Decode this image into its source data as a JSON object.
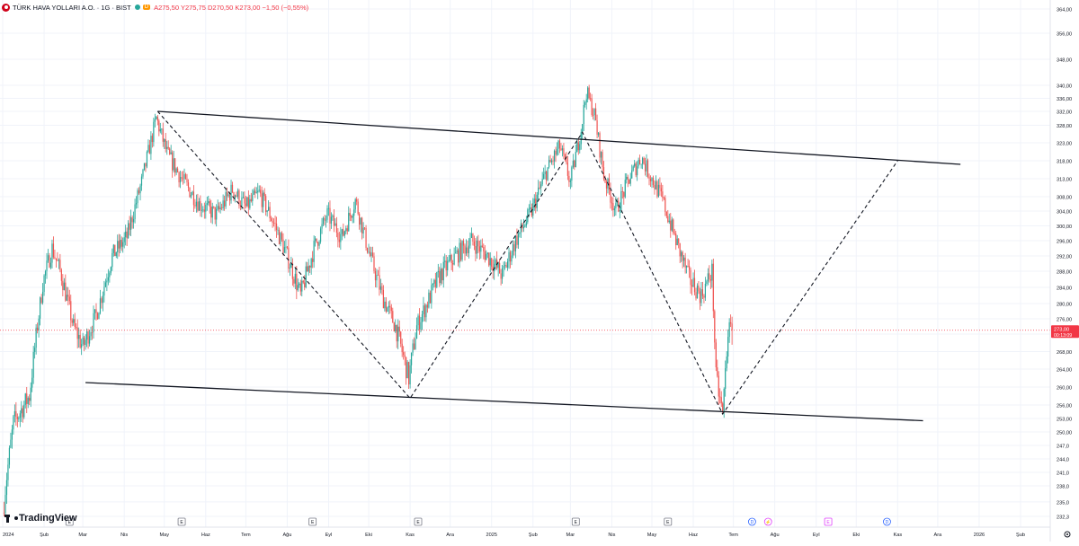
{
  "header": {
    "symbol": "TÜRK HAVA YOLLARI A.O. · 1G · BIST",
    "badge": "D",
    "ohlc": "A275,50 Y275,75 D270,50 K273,00 −1,50 (−0,55%)"
  },
  "brand": {
    "name": "TradingView",
    "icon": "tradingview-logo-icon"
  },
  "price_label": {
    "value": "273,00",
    "countdown": "00:13:09"
  },
  "settings_icon": "gear-icon",
  "chart_data": {
    "type": "candlestick",
    "y_ticks": [
      "364,00",
      "356,00",
      "348,00",
      "340,00",
      "336,00",
      "332,00",
      "328,00",
      "323,00",
      "318,00",
      "313,00",
      "308,00",
      "304,00",
      "300,00",
      "296,00",
      "292,00",
      "288,00",
      "284,00",
      "280,00",
      "276,00",
      "272,00",
      "268,00",
      "264,00",
      "260,00",
      "256,00",
      "253,00",
      "250,00",
      "247,0",
      "244,0",
      "241,0",
      "238,0",
      "235,0",
      "232,3"
    ],
    "x_ticks": [
      "2024",
      "Şub",
      "Mar",
      "Nis",
      "May",
      "Haz",
      "Tem",
      "Ağu",
      "Eyl",
      "Eki",
      "Kas",
      "Ara",
      "2025",
      "Şub",
      "Mar",
      "Nis",
      "May",
      "Haz",
      "Tem",
      "Ağu",
      "Eyl",
      "Eki",
      "Kas",
      "Ara",
      "2026",
      "Şub"
    ],
    "current_price": 273.0,
    "colors": {
      "up": "#26a69a",
      "down": "#ef5350",
      "line": "#131722",
      "price": "#f23645"
    },
    "candle_path": [
      [
        "2024-01-02",
        233
      ],
      [
        "2024-01-10",
        252
      ],
      [
        "2024-01-22",
        258
      ],
      [
        "2024-02-01",
        285
      ],
      [
        "2024-02-08",
        294
      ],
      [
        "2024-02-15",
        287
      ],
      [
        "2024-02-24",
        274
      ],
      [
        "2024-03-02",
        269
      ],
      [
        "2024-03-12",
        277
      ],
      [
        "2024-03-24",
        292
      ],
      [
        "2024-04-04",
        297
      ],
      [
        "2024-04-15",
        312
      ],
      [
        "2024-04-26",
        330
      ],
      [
        "2024-05-04",
        320
      ],
      [
        "2024-05-15",
        313
      ],
      [
        "2024-05-28",
        306
      ],
      [
        "2024-06-10",
        303
      ],
      [
        "2024-06-22",
        310
      ],
      [
        "2024-07-02",
        305
      ],
      [
        "2024-07-12",
        309
      ],
      [
        "2024-07-24",
        300
      ],
      [
        "2024-08-03",
        291
      ],
      [
        "2024-08-12",
        282
      ],
      [
        "2024-08-22",
        294
      ],
      [
        "2024-09-01",
        303
      ],
      [
        "2024-09-12",
        297
      ],
      [
        "2024-09-22",
        307
      ],
      [
        "2024-10-02",
        293
      ],
      [
        "2024-10-12",
        282
      ],
      [
        "2024-10-22",
        274
      ],
      [
        "2024-11-01",
        262
      ],
      [
        "2024-11-07",
        274
      ],
      [
        "2024-11-16",
        281
      ],
      [
        "2024-11-24",
        287
      ],
      [
        "2024-12-06",
        292
      ],
      [
        "2024-12-18",
        296
      ],
      [
        "2024-12-30",
        292
      ],
      [
        "2025-01-10",
        287
      ],
      [
        "2025-01-20",
        296
      ],
      [
        "2025-02-01",
        304
      ],
      [
        "2025-02-12",
        315
      ],
      [
        "2025-02-22",
        322
      ],
      [
        "2025-03-02",
        312
      ],
      [
        "2025-03-10",
        327
      ],
      [
        "2025-03-14",
        338
      ],
      [
        "2025-03-20",
        331
      ],
      [
        "2025-03-27",
        314
      ],
      [
        "2025-04-05",
        304
      ],
      [
        "2025-04-15",
        313
      ],
      [
        "2025-04-24",
        319
      ],
      [
        "2025-05-02",
        313
      ],
      [
        "2025-05-10",
        307
      ],
      [
        "2025-05-20",
        296
      ],
      [
        "2025-05-30",
        286
      ],
      [
        "2025-06-08",
        282
      ],
      [
        "2025-06-16",
        288
      ],
      [
        "2025-06-19",
        262
      ],
      [
        "2025-06-24",
        254
      ],
      [
        "2025-06-28",
        273
      ],
      [
        "2025-07-01",
        273
      ]
    ],
    "annotations": {
      "channel_upper": [
        [
          "2024-04-26",
          332
        ],
        [
          "2025-12-18",
          317
        ]
      ],
      "channel_lower": [
        [
          "2024-03-03",
          261
        ],
        [
          "2025-11-20",
          252.5
        ]
      ],
      "zigzag_dashed": [
        [
          "2024-04-26",
          332
        ],
        [
          "2024-11-01",
          257.5
        ],
        [
          "2025-03-10",
          326
        ],
        [
          "2025-06-23",
          254
        ],
        [
          "2025-11-01",
          318
        ]
      ]
    },
    "event_markers": [
      {
        "date": "2024-02-20",
        "label": "E"
      },
      {
        "date": "2024-05-14",
        "label": "E"
      },
      {
        "date": "2024-08-20",
        "label": "E"
      },
      {
        "date": "2024-11-07",
        "label": "E"
      },
      {
        "date": "2025-03-05",
        "label": "E"
      },
      {
        "date": "2025-05-13",
        "label": "E"
      },
      {
        "date": "2025-07-15",
        "label": "D"
      },
      {
        "date": "2025-07-27",
        "label": "⚡"
      },
      {
        "date": "2025-09-10",
        "label": "E"
      },
      {
        "date": "2025-10-24",
        "label": "D"
      }
    ]
  }
}
